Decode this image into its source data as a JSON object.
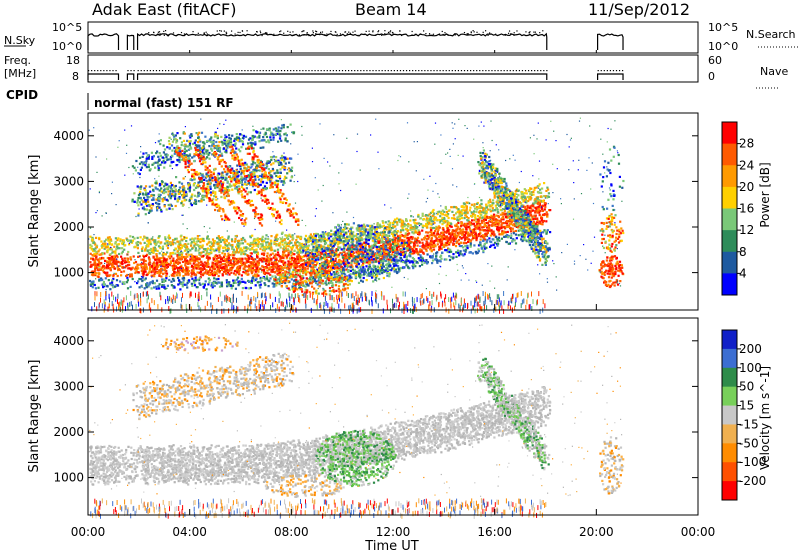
{
  "header": {
    "site": "Adak East (fitACF)",
    "beam": "Beam 14",
    "date": "11/Sep/2012"
  },
  "nsky_panel": {
    "left_label": "N.Sky",
    "right_label": "N.Search",
    "left_ticks": [
      "10^5",
      "10^0"
    ],
    "right_ticks": [
      "10^5",
      "10^0"
    ]
  },
  "freq_panel": {
    "left_label_line1": "Freq.",
    "left_label_line2": "[MHz]",
    "right_label": "Nave",
    "left_ticks": [
      "18",
      "8"
    ],
    "right_ticks": [
      "60",
      "0"
    ]
  },
  "cpid": {
    "label": "CPID",
    "mode": "normal (fast) 151 RF"
  },
  "chart_data": [
    {
      "type": "heatmap",
      "title": "Power",
      "ylabel": "Slant Range [km]",
      "xlabel": "Time UT",
      "colorbar_label": "Power [dB]",
      "colorbar_ticks": [
        "28",
        "24",
        "20",
        "16",
        "12",
        "8",
        "4"
      ],
      "colorbar_colors": [
        "#ff0000",
        "#ff5a00",
        "#ff9a00",
        "#ffd000",
        "#7ac878",
        "#2e8c5a",
        "#1e5aa0",
        "#0000ff"
      ],
      "x_ticks": [
        "00:00",
        "04:00",
        "08:00",
        "12:00",
        "16:00",
        "20:00",
        "00:00"
      ],
      "y_ticks": [
        "4000",
        "3000",
        "2000",
        "1000"
      ],
      "xlim_hours": [
        0,
        24
      ],
      "ylim_km": [
        180,
        4500
      ]
    },
    {
      "type": "heatmap",
      "title": "Velocity",
      "ylabel": "Slant Range [km]",
      "xlabel": "Time UT",
      "colorbar_label": "Velocity [m s^-1]",
      "colorbar_ticks": [
        "200",
        "100",
        "50",
        "15",
        "-15",
        "-50",
        "-100",
        "-200"
      ],
      "colorbar_colors": [
        "#1020c8",
        "#3c6ed2",
        "#2e8c4a",
        "#78d05a",
        "#c8c8c8",
        "#f0b050",
        "#ff8c00",
        "#ff5000",
        "#ff0000"
      ],
      "x_ticks": [
        "00:00",
        "04:00",
        "08:00",
        "12:00",
        "16:00",
        "20:00",
        "00:00"
      ],
      "y_ticks": [
        "4000",
        "3000",
        "2000",
        "1000"
      ],
      "xlim_hours": [
        0,
        24
      ],
      "ylim_km": [
        180,
        4500
      ]
    }
  ],
  "xaxis": {
    "title": "Time UT"
  }
}
